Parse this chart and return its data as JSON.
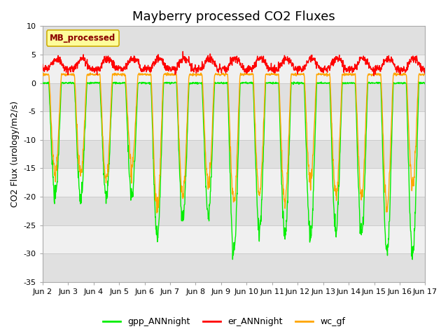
{
  "title": "Mayberry processed CO2 Fluxes",
  "ylabel": "CO2 Flux (urology/m2/s)",
  "ylim": [
    -35,
    10
  ],
  "yticks": [
    -35,
    -30,
    -25,
    -20,
    -15,
    -10,
    -5,
    0,
    5,
    10
  ],
  "fig_bg_color": "#ffffff",
  "plot_bg_color": "#ffffff",
  "band_color_light": "#f0f0f0",
  "band_color_dark": "#e0e0e0",
  "gpp_color": "#00ee00",
  "er_color": "#ff0000",
  "wc_color": "#ffa500",
  "legend_label": "MB_processed",
  "legend_text_color": "#8b0000",
  "legend_bg": "#ffff99",
  "legend_edge_color": "#ccaa00",
  "start_day": 2,
  "end_day": 17,
  "n_days": 15,
  "points_per_day": 96,
  "title_fontsize": 13,
  "axis_fontsize": 9,
  "tick_fontsize": 8,
  "linewidth": 1.0
}
